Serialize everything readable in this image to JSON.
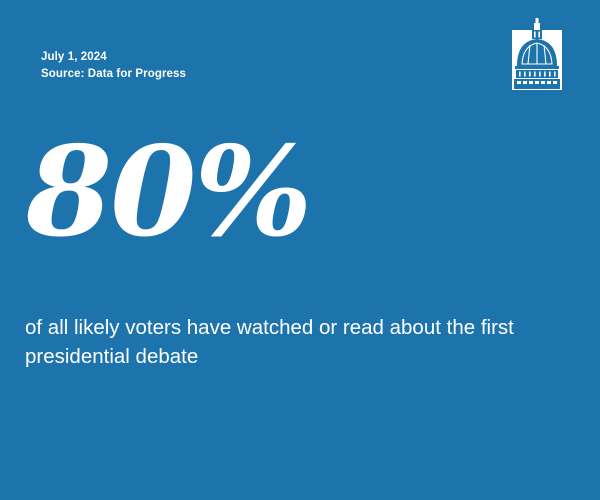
{
  "header": {
    "date": "July 1, 2024",
    "source": "Source: Data for Progress"
  },
  "stat": {
    "value": "80%",
    "caption": "of all likely voters have watched or read about the first presidential debate"
  },
  "logo": {
    "icon": "capitol-dome-icon"
  },
  "colors": {
    "background": "#1d73ab",
    "text": "#ffffff"
  }
}
